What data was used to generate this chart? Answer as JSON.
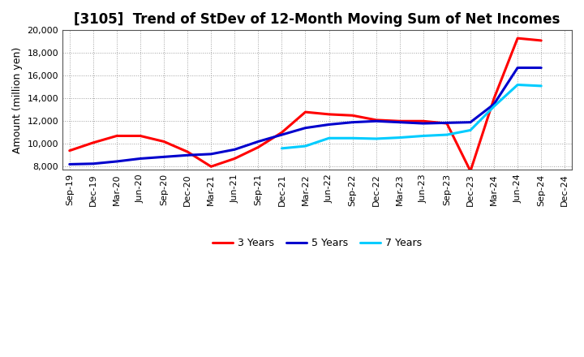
{
  "title": "[3105]  Trend of StDev of 12-Month Moving Sum of Net Incomes",
  "ylabel": "Amount (million yen)",
  "x_labels": [
    "Sep-19",
    "Dec-19",
    "Mar-20",
    "Jun-20",
    "Sep-20",
    "Dec-20",
    "Mar-21",
    "Jun-21",
    "Sep-21",
    "Dec-21",
    "Mar-22",
    "Jun-22",
    "Sep-22",
    "Dec-22",
    "Mar-23",
    "Jun-23",
    "Sep-23",
    "Dec-23",
    "Mar-24",
    "Jun-24",
    "Sep-24",
    "Dec-24"
  ],
  "series": {
    "3 Years": {
      "color": "#ff0000",
      "data_x": [
        0,
        1,
        2,
        3,
        4,
        5,
        6,
        7,
        8,
        9,
        10,
        11,
        12,
        13,
        14,
        15,
        16,
        17,
        18,
        19,
        20
      ],
      "data_y": [
        9400,
        10100,
        10700,
        10700,
        10200,
        9300,
        8000,
        8700,
        9700,
        11000,
        12800,
        12600,
        12500,
        12100,
        12000,
        12000,
        11800,
        7600,
        14000,
        19300,
        19100
      ]
    },
    "5 Years": {
      "color": "#0000cd",
      "data_x": [
        0,
        1,
        2,
        3,
        4,
        5,
        6,
        7,
        8,
        9,
        10,
        11,
        12,
        13,
        14,
        15,
        16,
        17,
        18,
        19,
        20
      ],
      "data_y": [
        8200,
        8250,
        8450,
        8700,
        8850,
        9000,
        9100,
        9500,
        10200,
        10800,
        11400,
        11700,
        11900,
        12000,
        11900,
        11800,
        11850,
        11900,
        13500,
        16700,
        16700
      ]
    },
    "7 Years": {
      "color": "#00ccff",
      "data_x": [
        9,
        10,
        11,
        12,
        13,
        14,
        15,
        16,
        17,
        18,
        19,
        20
      ],
      "data_y": [
        9600,
        9800,
        10500,
        10500,
        10450,
        10550,
        10700,
        10800,
        11200,
        13300,
        15200,
        15100
      ]
    },
    "10 Years": {
      "color": "#008000",
      "data_x": [],
      "data_y": []
    }
  },
  "ylim": [
    7700,
    20000
  ],
  "ytick_min": 8000,
  "ytick_max": 20000,
  "ytick_step": 2000,
  "background_color": "#ffffff",
  "grid_color": "#888888",
  "title_fontsize": 12,
  "axis_label_fontsize": 9,
  "tick_fontsize": 8,
  "legend_fontsize": 9,
  "linewidth": 2.2
}
